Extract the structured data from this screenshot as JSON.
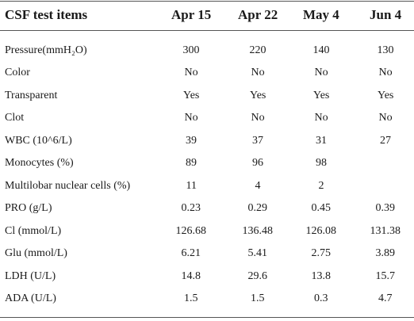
{
  "table": {
    "header": [
      "CSF test items",
      "Apr 15",
      "Apr 22",
      "May 4",
      "Jun 4"
    ],
    "rows": [
      [
        "Pressure(mmH₂O)",
        "300",
        "220",
        "140",
        "130"
      ],
      [
        "Color",
        "No",
        "No",
        "No",
        "No"
      ],
      [
        "Transparent",
        "Yes",
        "Yes",
        "Yes",
        "Yes"
      ],
      [
        "Clot",
        "No",
        "No",
        "No",
        "No"
      ],
      [
        "WBC (10^6/L)",
        "39",
        "37",
        "31",
        "27"
      ],
      [
        "Monocytes (%)",
        "89",
        "96",
        "98",
        null
      ],
      [
        "Multilobar nuclear cells (%)",
        "11",
        "4",
        "2",
        null
      ],
      [
        "PRO (g/L)",
        "0.23",
        "0.29",
        "0.45",
        "0.39"
      ],
      [
        "Cl (mmol/L)",
        "126.68",
        "136.48",
        "126.08",
        "131.38"
      ],
      [
        "Glu (mmol/L)",
        "6.21",
        "5.41",
        "2.75",
        "3.89"
      ],
      [
        "LDH (U/L)",
        "14.8",
        "29.6",
        "13.8",
        "15.7"
      ],
      [
        "ADA (U/L)",
        "1.5",
        "1.5",
        "0.3",
        "4.7"
      ]
    ]
  }
}
